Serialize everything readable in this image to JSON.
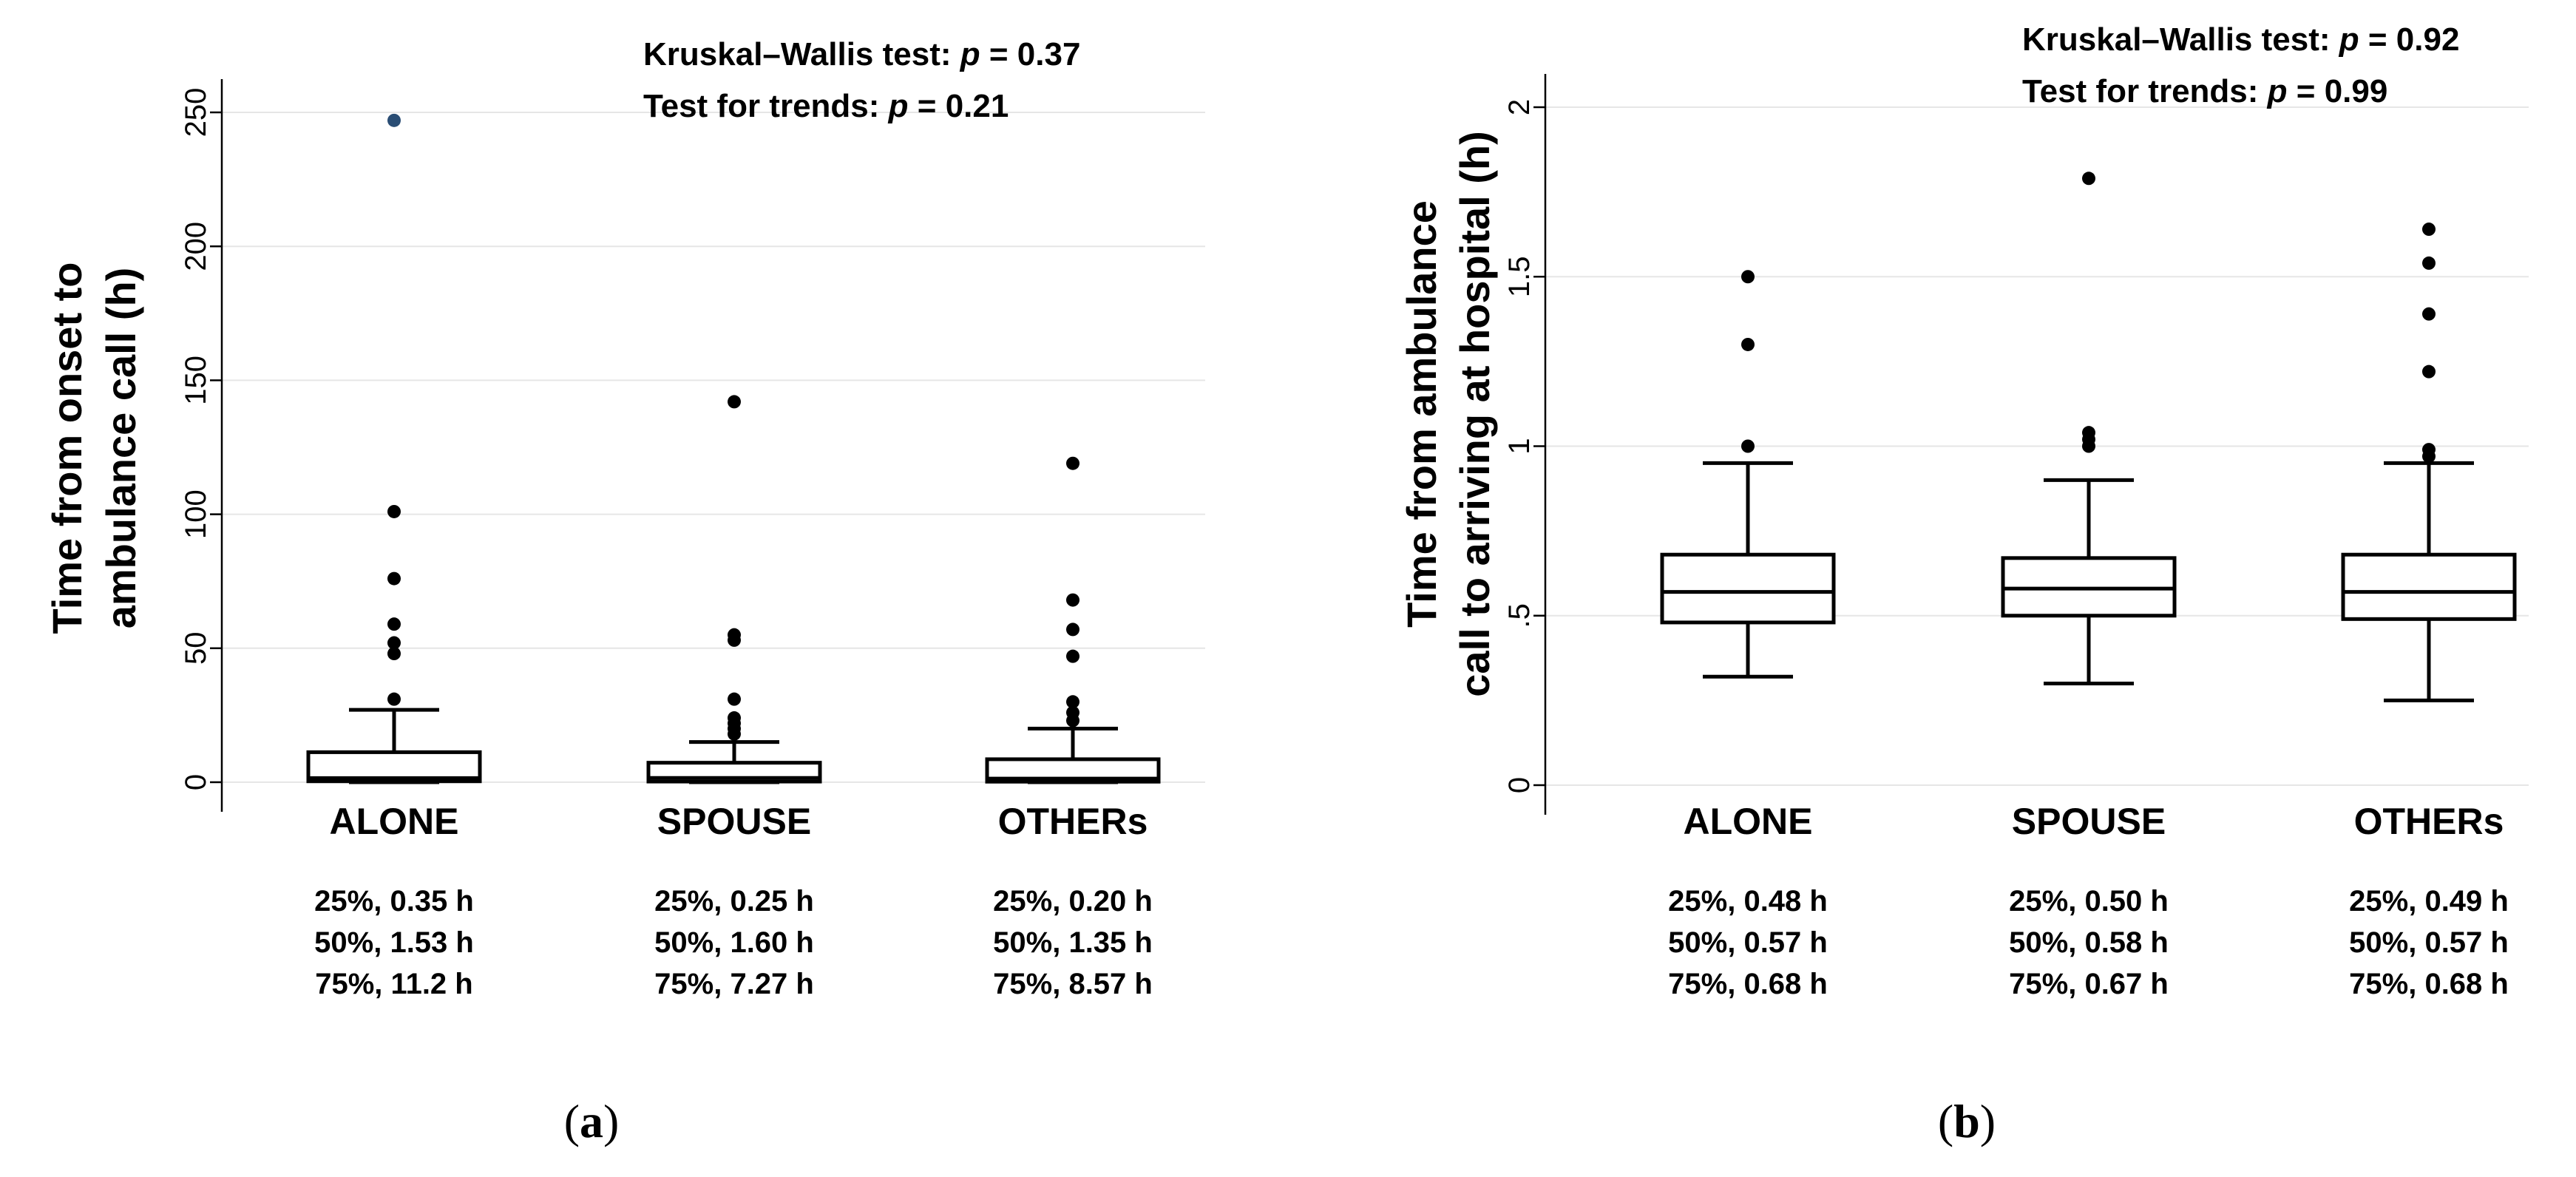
{
  "chart_data": [
    {
      "type": "box",
      "panel_label_open": "(",
      "panel_label_letter": "a",
      "panel_label_close": ")",
      "ylabel_line1": "Time from onset to",
      "ylabel_line2": "ambulance call (h)",
      "ylim": [
        0,
        250
      ],
      "yticks": [
        {
          "value": 0,
          "label": "0"
        },
        {
          "value": 50,
          "label": "50"
        },
        {
          "value": 100,
          "label": "100"
        },
        {
          "value": 150,
          "label": "150"
        },
        {
          "value": 200,
          "label": "200"
        },
        {
          "value": 250,
          "label": "250"
        }
      ],
      "annotation_line1_prefix": "Kruskal–Wallis test: ",
      "annotation_line1_p": "p",
      "annotation_line1_value": " = 0.37",
      "annotation_line2_prefix": "Test for trends: ",
      "annotation_line2_p": "p",
      "annotation_line2_value": " = 0.21",
      "categories": [
        {
          "name": "ALONE",
          "q1": 0.35,
          "median": 1.53,
          "q3": 11.2,
          "whisker_low": 0,
          "whisker_high": 27,
          "outliers": [
            31,
            48,
            52,
            59,
            76,
            101,
            247
          ],
          "quartile_text": [
            "25%, 0.35 h",
            "50%, 1.53 h",
            "75%, 11.2 h"
          ]
        },
        {
          "name": "SPOUSE",
          "q1": 0.25,
          "median": 1.6,
          "q3": 7.27,
          "whisker_low": 0,
          "whisker_high": 15,
          "outliers": [
            18,
            20,
            22,
            24,
            31,
            53,
            55,
            142
          ],
          "quartile_text": [
            "25%, 0.25 h",
            "50%, 1.60 h",
            "75%, 7.27 h"
          ]
        },
        {
          "name": "OTHERs",
          "q1": 0.2,
          "median": 1.35,
          "q3": 8.57,
          "whisker_low": 0,
          "whisker_high": 20,
          "outliers": [
            23,
            26,
            30,
            47,
            57,
            68,
            119
          ],
          "quartile_text": [
            "25%, 0.20 h",
            "50%, 1.35 h",
            "75%, 8.57 h"
          ]
        }
      ]
    },
    {
      "type": "box",
      "panel_label_open": "(",
      "panel_label_letter": "b",
      "panel_label_close": ")",
      "ylabel_line1": "Time from ambulance",
      "ylabel_line2": "call to arriving at hospital (h)",
      "ylim": [
        0,
        2
      ],
      "yticks": [
        {
          "value": 0,
          "label": "0"
        },
        {
          "value": 0.5,
          "label": ".5"
        },
        {
          "value": 1,
          "label": "1"
        },
        {
          "value": 1.5,
          "label": "1.5"
        },
        {
          "value": 2,
          "label": "2"
        }
      ],
      "annotation_line1_prefix": "Kruskal–Wallis test: ",
      "annotation_line1_p": "p",
      "annotation_line1_value": " = 0.92",
      "annotation_line2_prefix": "Test for trends: ",
      "annotation_line2_p": "p",
      "annotation_line2_value": " = 0.99",
      "categories": [
        {
          "name": "ALONE",
          "q1": 0.48,
          "median": 0.57,
          "q3": 0.68,
          "whisker_low": 0.32,
          "whisker_high": 0.95,
          "outliers": [
            1.0,
            1.3,
            1.5
          ],
          "quartile_text": [
            "25%, 0.48 h",
            "50%, 0.57 h",
            "75%, 0.68 h"
          ]
        },
        {
          "name": "SPOUSE",
          "q1": 0.5,
          "median": 0.58,
          "q3": 0.67,
          "whisker_low": 0.3,
          "whisker_high": 0.9,
          "outliers": [
            1.0,
            1.02,
            1.04,
            1.79
          ],
          "quartile_text": [
            "25%, 0.50 h",
            "50%, 0.58 h",
            "75%, 0.67 h"
          ]
        },
        {
          "name": "OTHERs",
          "q1": 0.49,
          "median": 0.57,
          "q3": 0.68,
          "whisker_low": 0.25,
          "whisker_high": 0.95,
          "outliers": [
            0.97,
            0.99,
            1.22,
            1.39,
            1.54,
            1.64
          ],
          "quartile_text": [
            "25%, 0.49 h",
            "50%, 0.57 h",
            "75%, 0.68 h"
          ]
        }
      ]
    }
  ]
}
